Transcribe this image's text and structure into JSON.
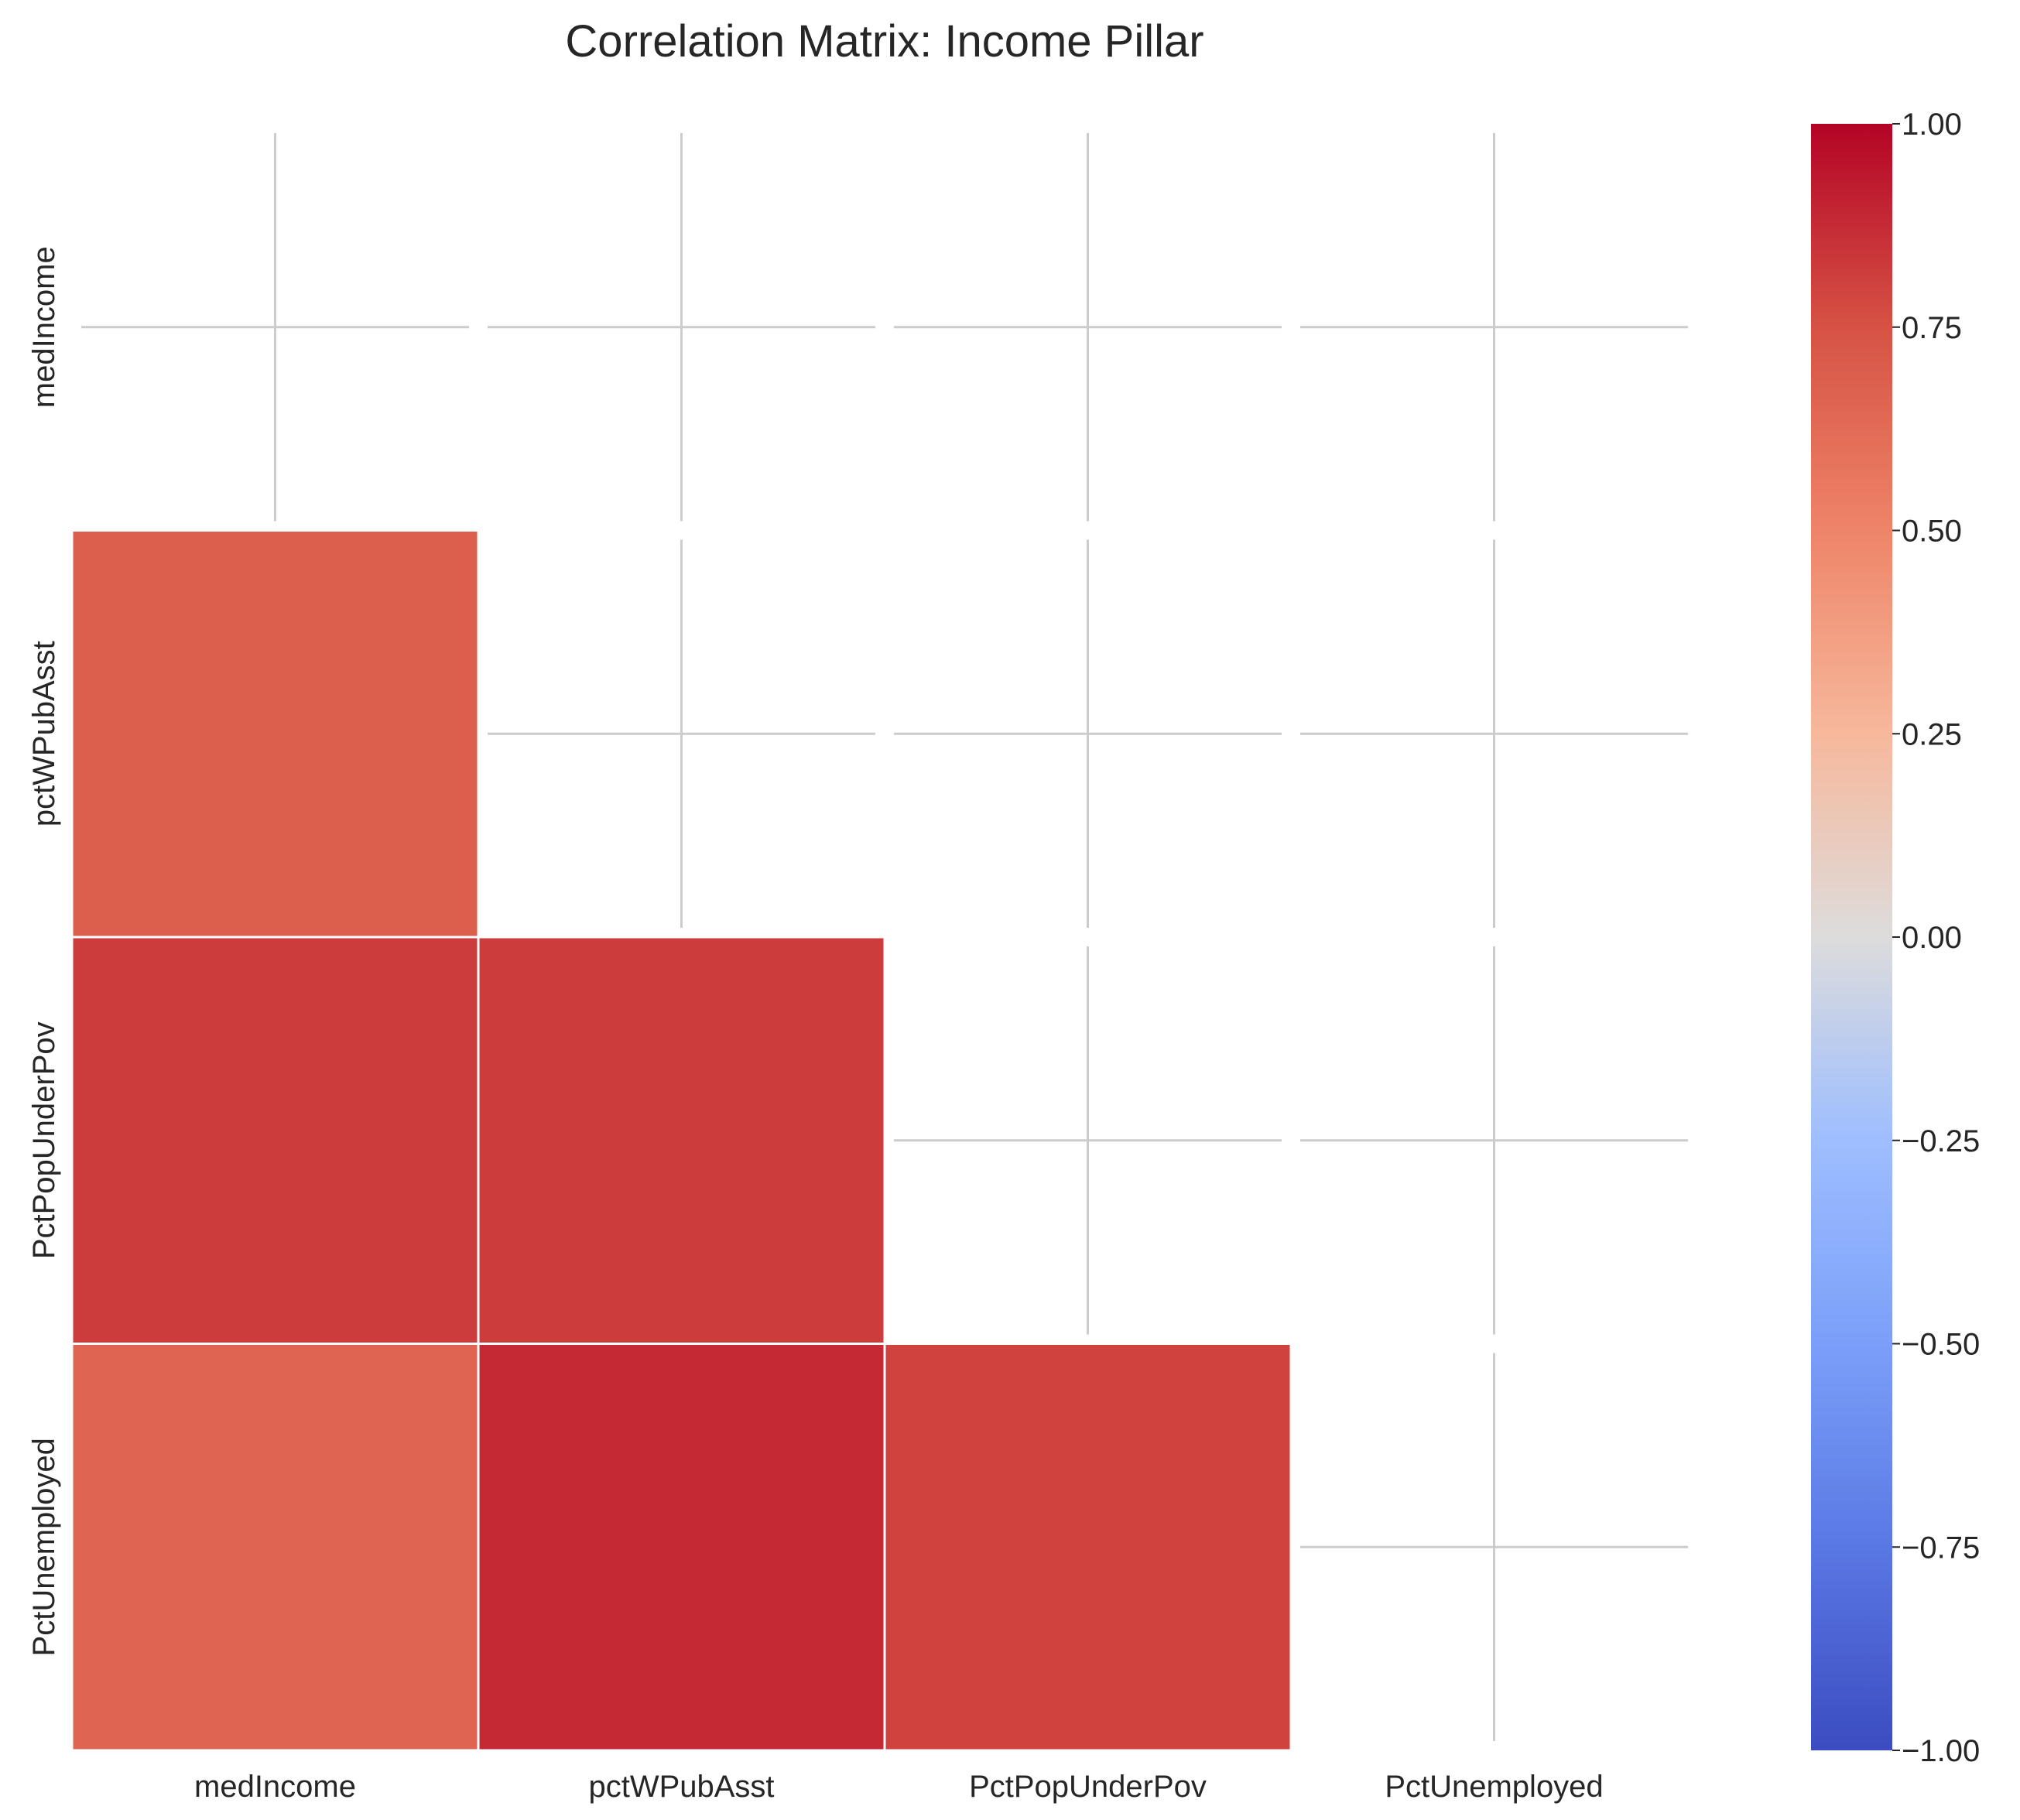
{
  "chart_data": {
    "type": "heatmap",
    "title": "Correlation Matrix: Income Pillar",
    "xlabel": "",
    "ylabel": "",
    "row_labels": [
      "medIncome",
      "pctWPubAsst",
      "PctPopUnderPov",
      "PctUnemployed"
    ],
    "col_labels": [
      "medIncome",
      "pctWPubAsst",
      "PctPopUnderPov",
      "PctUnemployed"
    ],
    "mask": "upper triangle including diagonal",
    "values": [
      [
        null,
        null,
        null,
        null
      ],
      [
        0.69,
        null,
        null,
        null
      ],
      [
        0.82,
        0.82,
        null,
        null
      ],
      [
        0.66,
        0.88,
        0.8,
        null
      ]
    ],
    "colormap": "coolwarm",
    "vmin": -1.0,
    "vmax": 1.0,
    "colorbar_ticks": [
      "1.00",
      "0.75",
      "0.50",
      "0.25",
      "0.00",
      "−0.25",
      "−0.50",
      "−0.75",
      "−1.00"
    ],
    "colorbar_tick_values": [
      1.0,
      0.75,
      0.5,
      0.25,
      0.0,
      -0.25,
      -0.5,
      -0.75,
      -1.0
    ],
    "grid": true
  }
}
